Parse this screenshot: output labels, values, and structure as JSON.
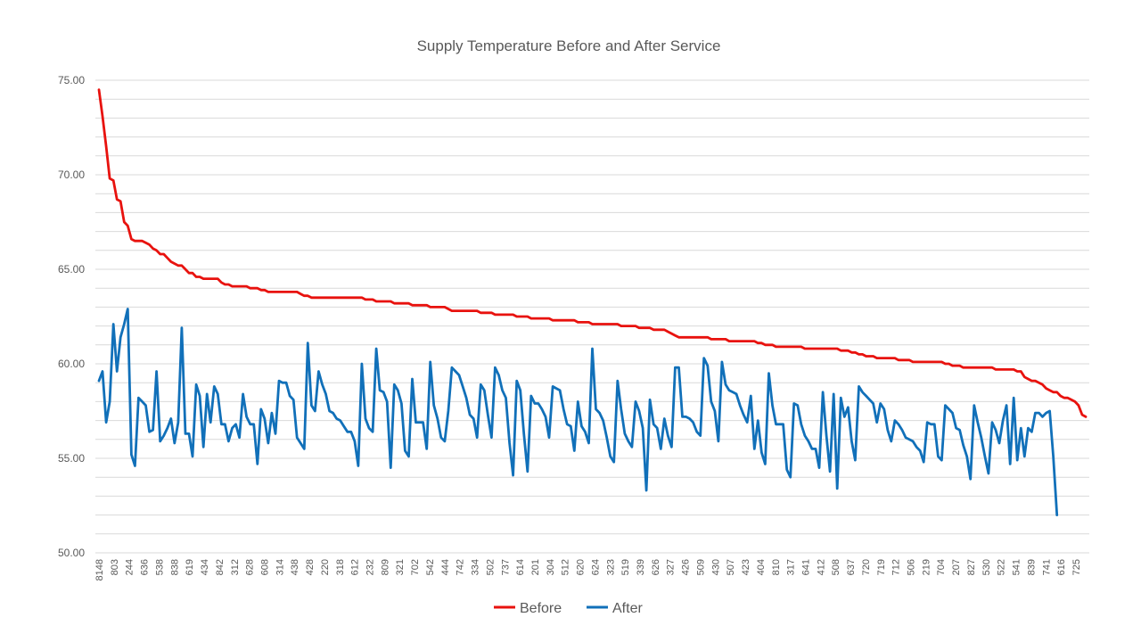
{
  "chart_data": {
    "type": "line",
    "title": "Supply Temperature Before and After Service",
    "xlabel": "",
    "ylabel": "",
    "ylim": [
      50,
      75
    ],
    "y_ticks": [
      "50.00",
      "55.00",
      "60.00",
      "65.00",
      "70.00",
      "75.00"
    ],
    "x_tick_labels": [
      "8148",
      "803",
      "244",
      "636",
      "538",
      "838",
      "619",
      "434",
      "842",
      "312",
      "628",
      "608",
      "314",
      "438",
      "428",
      "220",
      "318",
      "612",
      "232",
      "809",
      "321",
      "702",
      "542",
      "444",
      "742",
      "334",
      "502",
      "737",
      "614",
      "201",
      "304",
      "512",
      "620",
      "624",
      "323",
      "519",
      "339",
      "626",
      "327",
      "426",
      "509",
      "430",
      "507",
      "423",
      "404",
      "810",
      "317",
      "641",
      "412",
      "508",
      "637",
      "720",
      "719",
      "712",
      "506",
      "219",
      "704",
      "207",
      "827",
      "530",
      "522",
      "541",
      "839",
      "741",
      "616",
      "725"
    ],
    "grid": true,
    "legend_position": "bottom",
    "series": [
      {
        "name": "Before",
        "color": "#E8120E",
        "values": [
          74.5,
          73.1,
          71.5,
          69.8,
          69.7,
          68.7,
          68.6,
          67.5,
          67.3,
          66.6,
          66.5,
          66.5,
          66.5,
          66.4,
          66.3,
          66.1,
          66.0,
          65.8,
          65.8,
          65.6,
          65.4,
          65.3,
          65.2,
          65.2,
          65.0,
          64.8,
          64.8,
          64.6,
          64.6,
          64.5,
          64.5,
          64.5,
          64.5,
          64.5,
          64.3,
          64.2,
          64.2,
          64.1,
          64.1,
          64.1,
          64.1,
          64.1,
          64.0,
          64.0,
          64.0,
          63.9,
          63.9,
          63.8,
          63.8,
          63.8,
          63.8,
          63.8,
          63.8,
          63.8,
          63.8,
          63.8,
          63.7,
          63.6,
          63.6,
          63.5,
          63.5,
          63.5,
          63.5,
          63.5,
          63.5,
          63.5,
          63.5,
          63.5,
          63.5,
          63.5,
          63.5,
          63.5,
          63.5,
          63.5,
          63.4,
          63.4,
          63.4,
          63.3,
          63.3,
          63.3,
          63.3,
          63.3,
          63.2,
          63.2,
          63.2,
          63.2,
          63.2,
          63.1,
          63.1,
          63.1,
          63.1,
          63.1,
          63.0,
          63.0,
          63.0,
          63.0,
          63.0,
          62.9,
          62.8,
          62.8,
          62.8,
          62.8,
          62.8,
          62.8,
          62.8,
          62.8,
          62.7,
          62.7,
          62.7,
          62.7,
          62.6,
          62.6,
          62.6,
          62.6,
          62.6,
          62.6,
          62.5,
          62.5,
          62.5,
          62.5,
          62.4,
          62.4,
          62.4,
          62.4,
          62.4,
          62.4,
          62.3,
          62.3,
          62.3,
          62.3,
          62.3,
          62.3,
          62.3,
          62.2,
          62.2,
          62.2,
          62.2,
          62.1,
          62.1,
          62.1,
          62.1,
          62.1,
          62.1,
          62.1,
          62.1,
          62.0,
          62.0,
          62.0,
          62.0,
          62.0,
          61.9,
          61.9,
          61.9,
          61.9,
          61.8,
          61.8,
          61.8,
          61.8,
          61.7,
          61.6,
          61.5,
          61.4,
          61.4,
          61.4,
          61.4,
          61.4,
          61.4,
          61.4,
          61.4,
          61.4,
          61.3,
          61.3,
          61.3,
          61.3,
          61.3,
          61.2,
          61.2,
          61.2,
          61.2,
          61.2,
          61.2,
          61.2,
          61.2,
          61.1,
          61.1,
          61.0,
          61.0,
          61.0,
          60.9,
          60.9,
          60.9,
          60.9,
          60.9,
          60.9,
          60.9,
          60.9,
          60.8,
          60.8,
          60.8,
          60.8,
          60.8,
          60.8,
          60.8,
          60.8,
          60.8,
          60.8,
          60.7,
          60.7,
          60.7,
          60.6,
          60.6,
          60.5,
          60.5,
          60.4,
          60.4,
          60.4,
          60.3,
          60.3,
          60.3,
          60.3,
          60.3,
          60.3,
          60.2,
          60.2,
          60.2,
          60.2,
          60.1,
          60.1,
          60.1,
          60.1,
          60.1,
          60.1,
          60.1,
          60.1,
          60.1,
          60.0,
          60.0,
          59.9,
          59.9,
          59.9,
          59.8,
          59.8,
          59.8,
          59.8,
          59.8,
          59.8,
          59.8,
          59.8,
          59.8,
          59.7,
          59.7,
          59.7,
          59.7,
          59.7,
          59.7,
          59.6,
          59.6,
          59.3,
          59.2,
          59.1,
          59.1,
          59.0,
          58.9,
          58.7,
          58.6,
          58.5,
          58.5,
          58.3,
          58.2,
          58.2,
          58.1,
          58.0,
          57.8,
          57.3,
          57.2
        ]
      },
      {
        "name": "After",
        "color": "#1170B9",
        "values": [
          59.1,
          59.6,
          56.9,
          58.0,
          62.1,
          59.6,
          61.4,
          62.1,
          62.9,
          55.2,
          54.6,
          58.2,
          58.0,
          57.8,
          56.4,
          56.5,
          59.6,
          55.9,
          56.2,
          56.6,
          57.1,
          55.8,
          56.9,
          61.9,
          56.3,
          56.3,
          55.1,
          58.9,
          58.3,
          55.6,
          58.4,
          56.9,
          58.8,
          58.4,
          56.8,
          56.8,
          55.9,
          56.6,
          56.8,
          56.1,
          58.4,
          57.2,
          56.8,
          56.8,
          54.7,
          57.6,
          57.1,
          55.8,
          57.4,
          56.3,
          59.1,
          59.0,
          59.0,
          58.3,
          58.1,
          56.1,
          55.8,
          55.5,
          61.1,
          57.8,
          57.5,
          59.6,
          58.9,
          58.4,
          57.5,
          57.4,
          57.1,
          57.0,
          56.7,
          56.4,
          56.4,
          55.9,
          54.6,
          60.0,
          57.1,
          56.6,
          56.4,
          60.8,
          58.6,
          58.5,
          58.0,
          54.5,
          58.9,
          58.6,
          57.9,
          55.4,
          55.1,
          59.2,
          56.9,
          56.9,
          56.9,
          55.5,
          60.1,
          57.8,
          57.1,
          56.1,
          55.9,
          57.5,
          59.8,
          59.6,
          59.4,
          58.8,
          58.2,
          57.3,
          57.1,
          56.1,
          58.9,
          58.6,
          57.3,
          56.1,
          59.8,
          59.4,
          58.6,
          58.2,
          55.8,
          54.1,
          59.1,
          58.6,
          56.3,
          54.3,
          58.3,
          57.9,
          57.9,
          57.6,
          57.2,
          56.1,
          58.8,
          58.7,
          58.6,
          57.6,
          56.8,
          56.7,
          55.4,
          58.0,
          56.7,
          56.4,
          55.8,
          60.8,
          57.6,
          57.4,
          57.0,
          56.1,
          55.1,
          54.8,
          59.1,
          57.6,
          56.3,
          55.9,
          55.6,
          58.0,
          57.5,
          56.6,
          53.3,
          58.1,
          56.8,
          56.6,
          55.5,
          57.1,
          56.2,
          55.6,
          59.8,
          59.8,
          57.2,
          57.2,
          57.1,
          56.9,
          56.4,
          56.2,
          60.3,
          59.9,
          58.0,
          57.5,
          55.9,
          60.1,
          58.9,
          58.6,
          58.5,
          58.4,
          57.8,
          57.3,
          56.9,
          58.3,
          55.5,
          57.0,
          55.3,
          54.7,
          59.5,
          57.8,
          56.8,
          56.8,
          56.8,
          54.4,
          54.0,
          57.9,
          57.8,
          56.8,
          56.2,
          55.9,
          55.5,
          55.5,
          54.5,
          58.5,
          56.2,
          54.3,
          58.4,
          53.4,
          58.2,
          57.2,
          57.7,
          55.9,
          54.9,
          58.8,
          58.5,
          58.3,
          58.1,
          57.9,
          56.9,
          57.9,
          57.6,
          56.5,
          55.9,
          57.0,
          56.8,
          56.5,
          56.1,
          56.0,
          55.9,
          55.6,
          55.4,
          54.8,
          56.9,
          56.8,
          56.8,
          55.1,
          54.9,
          57.8,
          57.6,
          57.4,
          56.6,
          56.5,
          55.7,
          55.1,
          53.9,
          57.8,
          56.9,
          56.1,
          55.1,
          54.2,
          56.9,
          56.5,
          55.8,
          57.0,
          57.8,
          54.7,
          58.2,
          54.9,
          56.6,
          55.1,
          56.6,
          56.4,
          57.4,
          57.4,
          57.2,
          57.4,
          57.5,
          55.1,
          52.0
        ]
      }
    ]
  }
}
